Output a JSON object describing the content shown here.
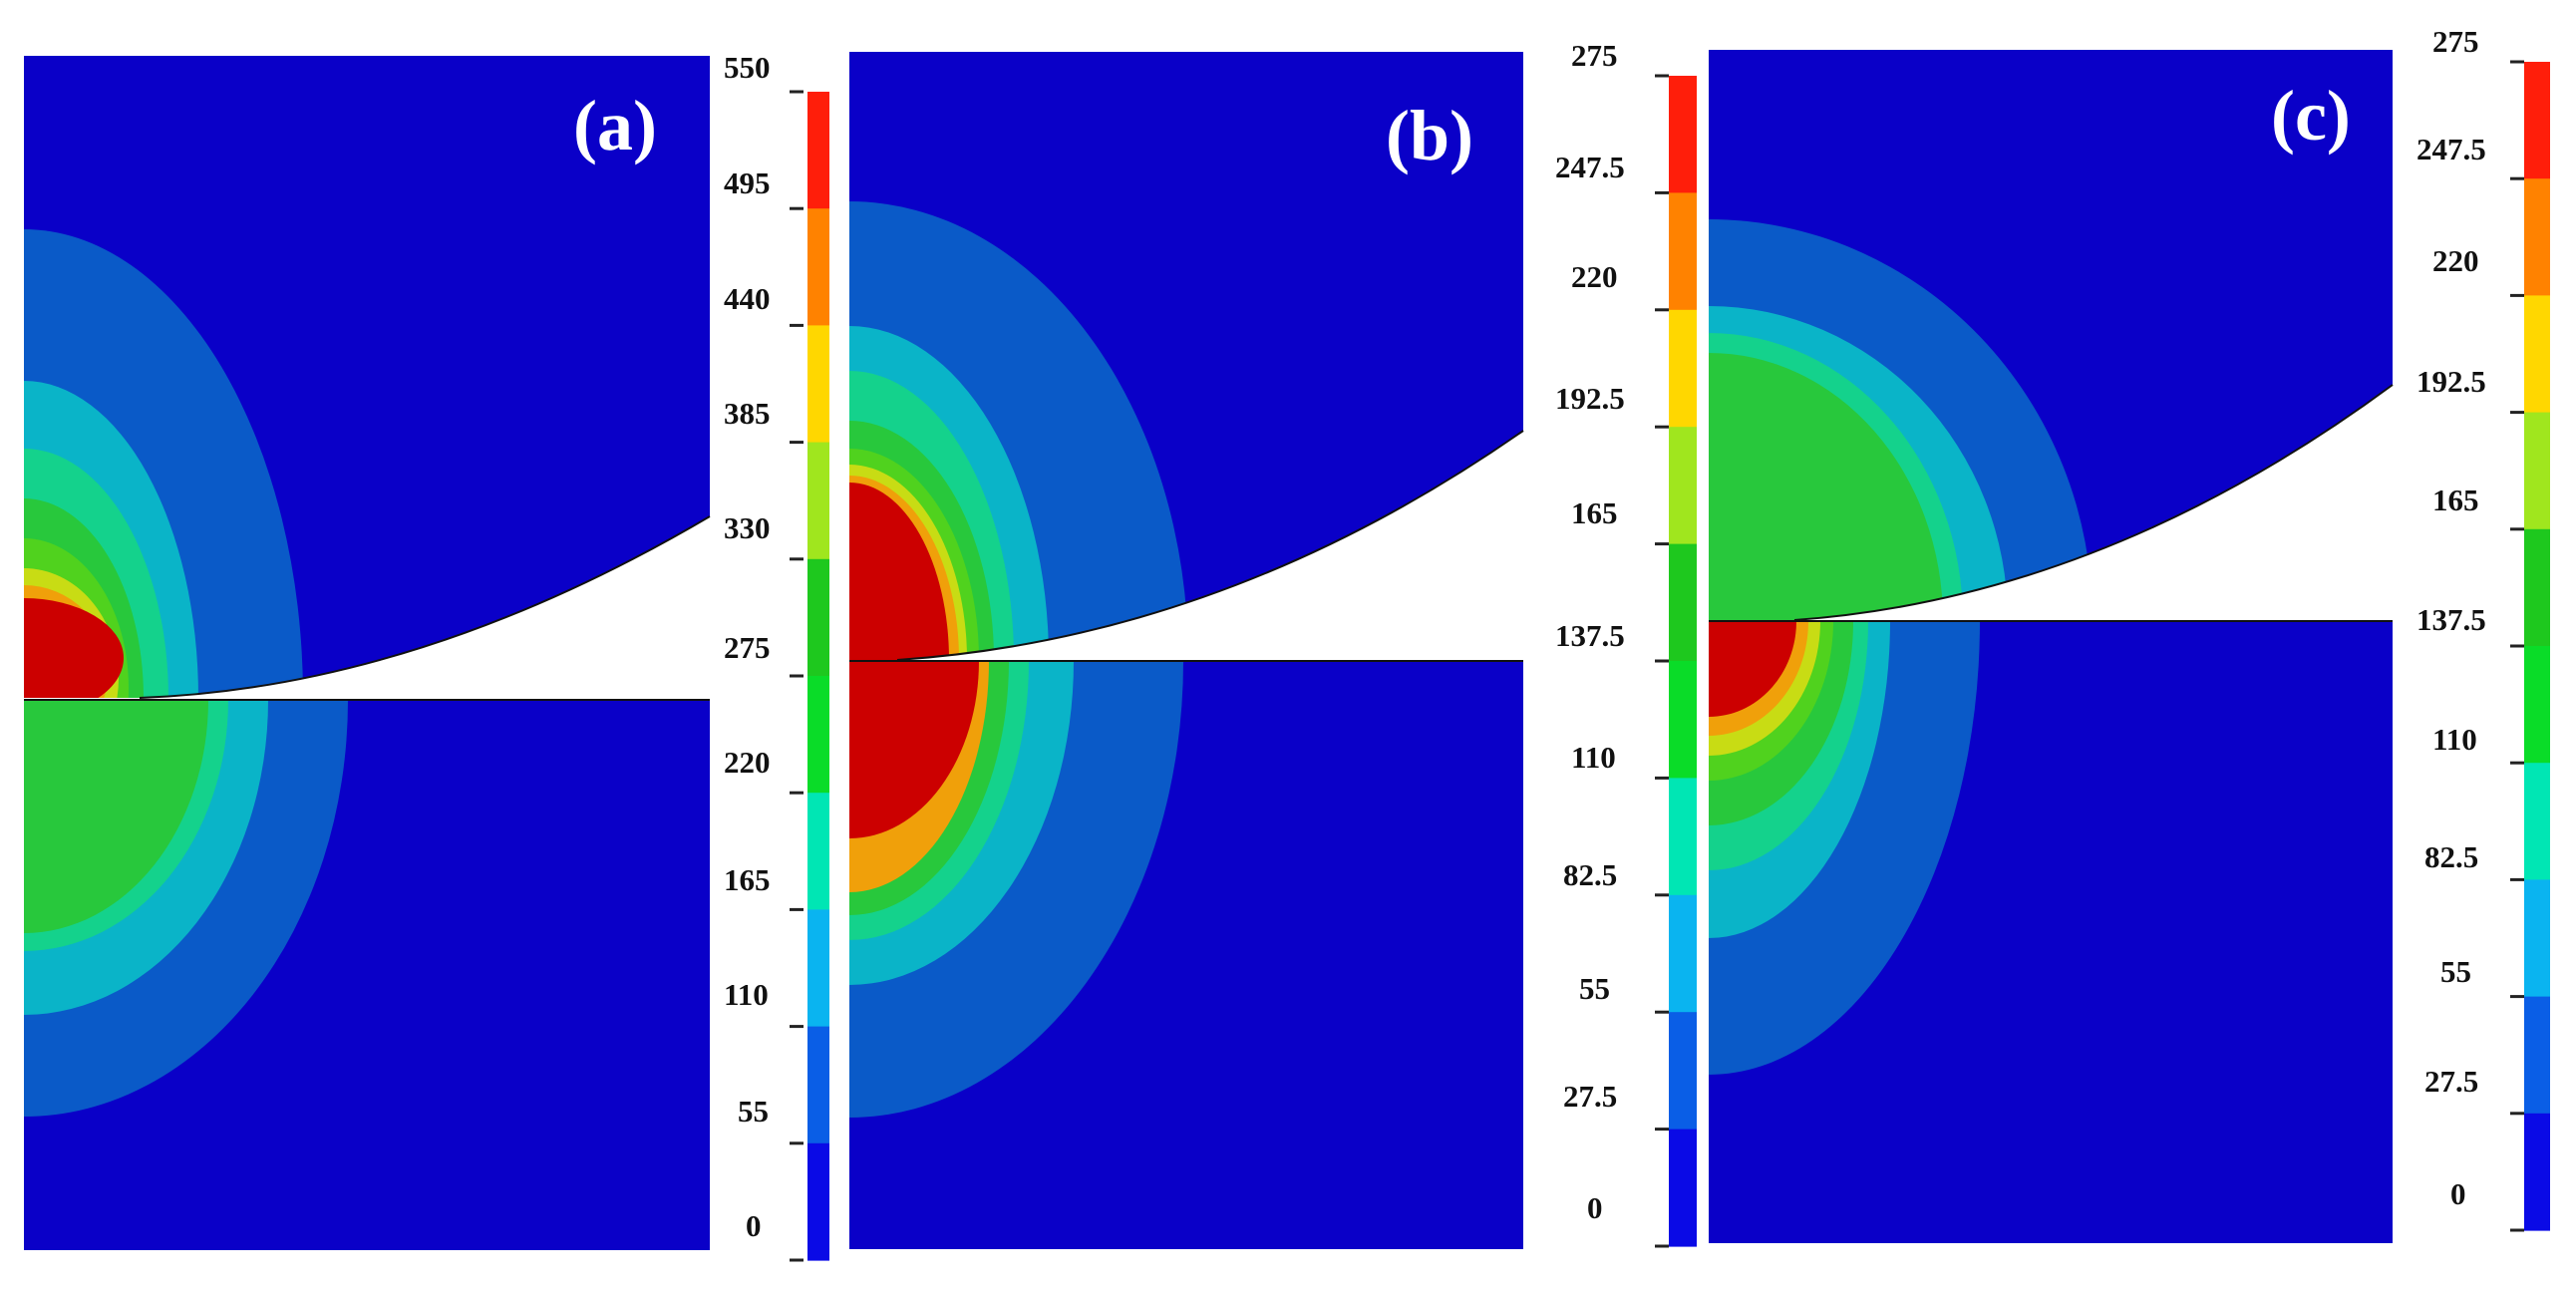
{
  "panels": [
    {
      "id": "a",
      "label": "(a)",
      "colorbar": {
        "min": 0,
        "max": 550,
        "tick_labels": [
          "550",
          "495",
          "440",
          "385",
          "330",
          "275",
          "220",
          "165",
          "110",
          "55",
          "0"
        ]
      }
    },
    {
      "id": "b",
      "label": "(b)",
      "colorbar": {
        "min": 0,
        "max": 275,
        "tick_labels": [
          "275",
          "247.5",
          "220",
          "192.5",
          "165",
          "137.5",
          "110",
          "82.5",
          "55",
          "27.5",
          "0"
        ]
      }
    },
    {
      "id": "c",
      "label": "(c)",
      "colorbar": {
        "min": 0,
        "max": 275,
        "tick_labels": [
          "275",
          "247.5",
          "220",
          "192.5",
          "165",
          "137.5",
          "110",
          "82.5",
          "55",
          "27.5",
          "0"
        ]
      }
    }
  ],
  "colormap": [
    "#0a0ae6",
    "#0a5ee6",
    "#0ab4f0",
    "#00e6b4",
    "#0adc28",
    "#1ec81e",
    "#a0e61e",
    "#ffd700",
    "#ff8200",
    "#ff1e0a"
  ],
  "colors": {
    "background_field": "#0a00c8",
    "contour_levels": [
      "#0a00c8",
      "#0a5ac8",
      "#0ab4c8",
      "#14d28c",
      "#28c83c",
      "#50d21e",
      "#c8dc14",
      "#f0a00a",
      "#e62d0a",
      "#cc0000"
    ]
  }
}
